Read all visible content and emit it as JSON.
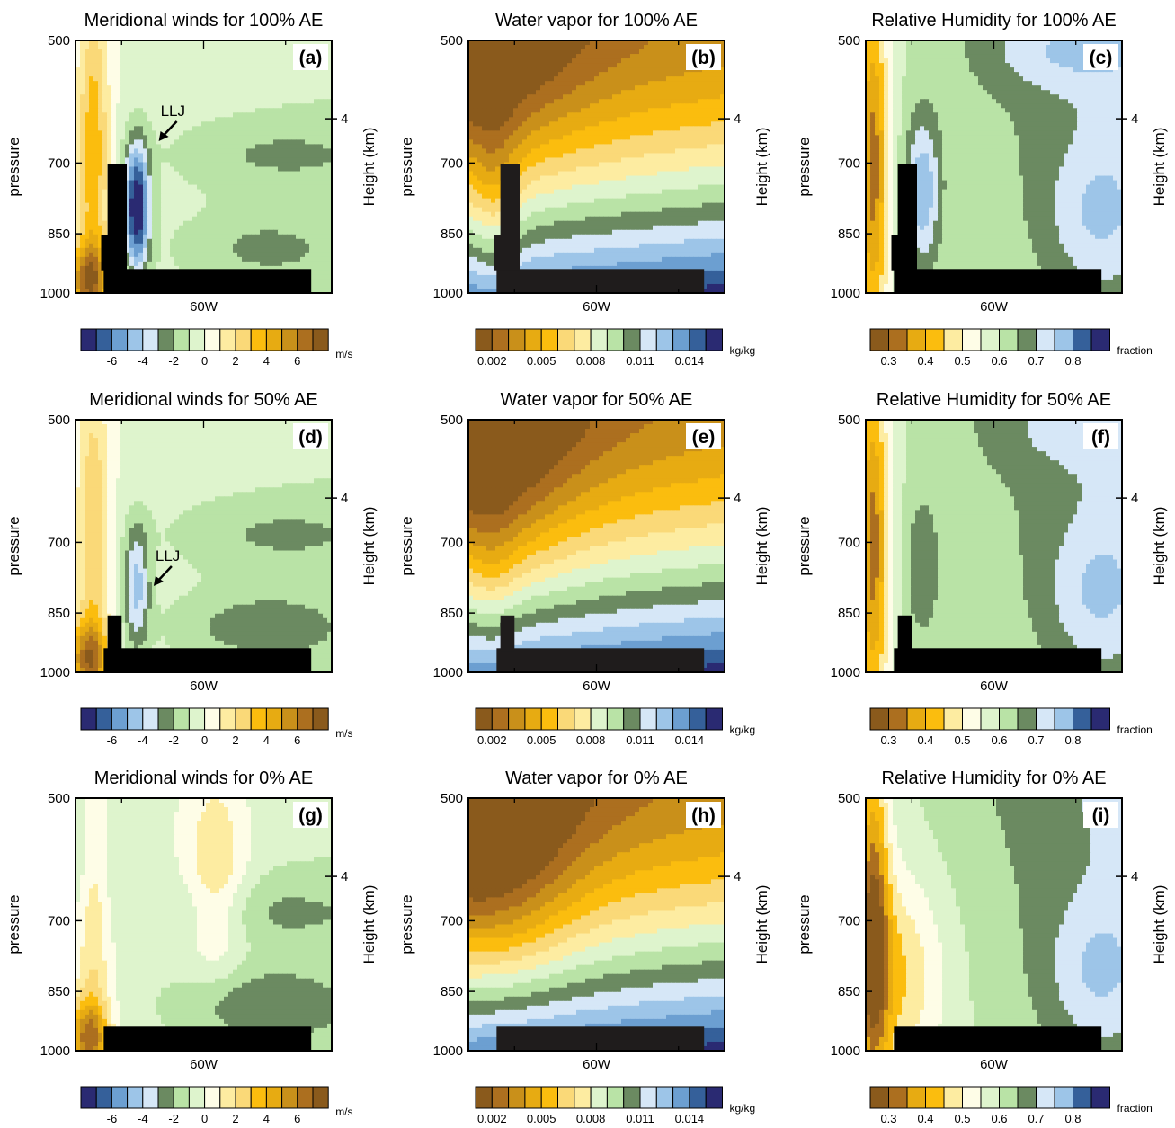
{
  "chart_data": [
    {
      "panel": "a",
      "type": "heatmap",
      "title": "Meridional winds for 100% AE",
      "field": "wind",
      "case": 100,
      "ylabel": "pressure",
      "y2label": "Height (km)",
      "xtick": "60W",
      "yticks": [
        "500",
        "700",
        "850",
        "1000"
      ],
      "y2tick": "4",
      "ylim": [
        1000,
        500
      ],
      "annotation": "LLJ",
      "colorbar": {
        "ticks": [
          "-6",
          "-4",
          "-2",
          "0",
          "2",
          "4",
          "6"
        ],
        "units": "m/s"
      }
    },
    {
      "panel": "b",
      "type": "heatmap",
      "title": "Water vapor for 100% AE",
      "field": "vapor",
      "case": 100,
      "ylabel": "pressure",
      "y2label": "Height (km)",
      "xtick": "60W",
      "yticks": [
        "500",
        "700",
        "850",
        "1000"
      ],
      "y2tick": "4",
      "ylim": [
        1000,
        500
      ],
      "annotation": "",
      "colorbar": {
        "ticks": [
          "0.002",
          "0.005",
          "0.008",
          "0.011",
          "0.014"
        ],
        "units": "kg/kg"
      }
    },
    {
      "panel": "c",
      "type": "heatmap",
      "title": "Relative Humidity for 100% AE",
      "field": "rh",
      "case": 100,
      "ylabel": "pressure",
      "y2label": "Height (km)",
      "xtick": "60W",
      "yticks": [
        "500",
        "700",
        "850",
        "1000"
      ],
      "y2tick": "4",
      "ylim": [
        1000,
        500
      ],
      "annotation": "",
      "colorbar": {
        "ticks": [
          "0.3",
          "0.4",
          "0.5",
          "0.6",
          "0.7",
          "0.8"
        ],
        "units": "fraction"
      }
    },
    {
      "panel": "d",
      "type": "heatmap",
      "title": "Meridional winds for 50% AE",
      "field": "wind",
      "case": 50,
      "ylabel": "pressure",
      "y2label": "Height (km)",
      "xtick": "60W",
      "yticks": [
        "500",
        "700",
        "850",
        "1000"
      ],
      "y2tick": "4",
      "ylim": [
        1000,
        500
      ],
      "annotation": "LLJ",
      "colorbar": {
        "ticks": [
          "-6",
          "-4",
          "-2",
          "0",
          "2",
          "4",
          "6"
        ],
        "units": "m/s"
      }
    },
    {
      "panel": "e",
      "type": "heatmap",
      "title": "Water vapor for 50% AE",
      "field": "vapor",
      "case": 50,
      "ylabel": "pressure",
      "y2label": "Height (km)",
      "xtick": "60W",
      "yticks": [
        "500",
        "700",
        "850",
        "1000"
      ],
      "y2tick": "4",
      "ylim": [
        1000,
        500
      ],
      "annotation": "",
      "colorbar": {
        "ticks": [
          "0.002",
          "0.005",
          "0.008",
          "0.011",
          "0.014"
        ],
        "units": "kg/kg"
      }
    },
    {
      "panel": "f",
      "type": "heatmap",
      "title": "Relative Humidity for 50% AE",
      "field": "rh",
      "case": 50,
      "ylabel": "pressure",
      "y2label": "Height (km)",
      "xtick": "60W",
      "yticks": [
        "500",
        "700",
        "850",
        "1000"
      ],
      "y2tick": "4",
      "ylim": [
        1000,
        500
      ],
      "annotation": "",
      "colorbar": {
        "ticks": [
          "0.3",
          "0.4",
          "0.5",
          "0.6",
          "0.7",
          "0.8"
        ],
        "units": "fraction"
      }
    },
    {
      "panel": "g",
      "type": "heatmap",
      "title": "Meridional winds for 0% AE",
      "field": "wind",
      "case": 0,
      "ylabel": "pressure",
      "y2label": "Height (km)",
      "xtick": "60W",
      "yticks": [
        "500",
        "700",
        "850",
        "1000"
      ],
      "y2tick": "4",
      "ylim": [
        1000,
        500
      ],
      "annotation": "",
      "colorbar": {
        "ticks": [
          "-6",
          "-4",
          "-2",
          "0",
          "2",
          "4",
          "6"
        ],
        "units": "m/s"
      }
    },
    {
      "panel": "h",
      "type": "heatmap",
      "title": "Water vapor for 0% AE",
      "field": "vapor",
      "case": 0,
      "ylabel": "pressure",
      "y2label": "Height (km)",
      "xtick": "60W",
      "yticks": [
        "500",
        "700",
        "850",
        "1000"
      ],
      "y2tick": "4",
      "ylim": [
        1000,
        500
      ],
      "annotation": "",
      "colorbar": {
        "ticks": [
          "0.002",
          "0.005",
          "0.008",
          "0.011",
          "0.014"
        ],
        "units": "kg/kg"
      }
    },
    {
      "panel": "i",
      "type": "heatmap",
      "title": "Relative Humidity for 0% AE",
      "field": "rh",
      "case": 0,
      "ylabel": "pressure",
      "y2label": "Height (km)",
      "xtick": "60W",
      "yticks": [
        "500",
        "700",
        "850",
        "1000"
      ],
      "y2tick": "4",
      "ylim": [
        1000,
        500
      ],
      "annotation": "",
      "colorbar": {
        "ticks": [
          "0.3",
          "0.4",
          "0.5",
          "0.6",
          "0.7",
          "0.8"
        ],
        "units": "fraction"
      }
    }
  ],
  "palettes": {
    "wind": [
      "#2a2a72",
      "#35609a",
      "#6c9fd1",
      "#9dc5e8",
      "#d6e7f7",
      "#6b8a61",
      "#b9e3a6",
      "#def4cd",
      "#fefde7",
      "#fdeca1",
      "#fad978",
      "#fbbd0e",
      "#e7ab12",
      "#c9901a",
      "#ac6f1f",
      "#8a5a1c"
    ],
    "vapor": [
      "#8a5a1c",
      "#ac6f1f",
      "#c9901a",
      "#e7ab12",
      "#fbbd0e",
      "#fad978",
      "#fdeca1",
      "#def4cd",
      "#b9e3a6",
      "#6b8a61",
      "#d6e7f7",
      "#9dc5e8",
      "#6c9fd1",
      "#35609a",
      "#2a2a72"
    ],
    "rh": [
      "#8a5a1c",
      "#ac6f1f",
      "#e7ab12",
      "#fbbd0e",
      "#fdeca1",
      "#fefde7",
      "#def4cd",
      "#b9e3a6",
      "#6b8a61",
      "#d6e7f7",
      "#9dc5e8",
      "#35609a",
      "#2a2a72"
    ],
    "terrain": "#000000",
    "mask": "#1f1c1c"
  }
}
